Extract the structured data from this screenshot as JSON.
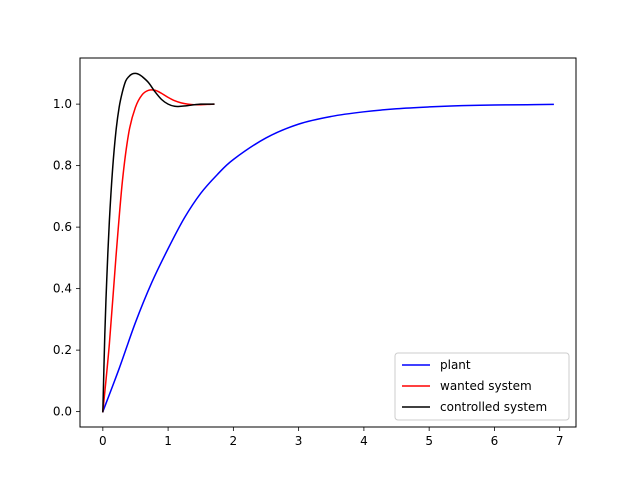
{
  "chart_data": {
    "type": "line",
    "title": "",
    "xlabel": "",
    "ylabel": "",
    "xlim": [
      -0.35,
      7.25
    ],
    "ylim": [
      -0.05,
      1.15
    ],
    "xticks": [
      0,
      1,
      2,
      3,
      4,
      5,
      6,
      7
    ],
    "xtick_labels": [
      "0",
      "1",
      "2",
      "3",
      "4",
      "5",
      "6",
      "7"
    ],
    "yticks": [
      0.0,
      0.2,
      0.4,
      0.6,
      0.8,
      1.0
    ],
    "ytick_labels": [
      "0.0",
      "0.2",
      "0.4",
      "0.6",
      "0.8",
      "1.0"
    ],
    "grid": false,
    "legend_position": "lower-right",
    "series": [
      {
        "name": "plant",
        "color": "#0000ff",
        "x": [
          0,
          0.25,
          0.5,
          0.75,
          1.0,
          1.25,
          1.5,
          1.75,
          2.0,
          2.5,
          3.0,
          3.5,
          4.0,
          4.5,
          5.0,
          5.5,
          6.0,
          6.5,
          6.9
        ],
        "y": [
          0,
          0.14,
          0.29,
          0.42,
          0.53,
          0.63,
          0.71,
          0.77,
          0.82,
          0.89,
          0.935,
          0.96,
          0.975,
          0.985,
          0.991,
          0.995,
          0.997,
          0.998,
          0.999
        ]
      },
      {
        "name": "wanted system",
        "color": "#ff0000",
        "x": [
          0,
          0.1,
          0.2,
          0.3,
          0.4,
          0.5,
          0.6,
          0.7,
          0.8,
          0.9,
          1.0,
          1.1,
          1.2,
          1.3,
          1.4,
          1.5,
          1.6,
          1.7
        ],
        "y": [
          0,
          0.22,
          0.5,
          0.75,
          0.91,
          0.99,
          1.03,
          1.045,
          1.045,
          1.035,
          1.022,
          1.011,
          1.004,
          1.0,
          0.998,
          0.998,
          0.999,
          1.0
        ]
      },
      {
        "name": "controlled system",
        "color": "#000000",
        "x": [
          0,
          0.03,
          0.06,
          0.1,
          0.15,
          0.2,
          0.25,
          0.3,
          0.35,
          0.4,
          0.45,
          0.5,
          0.55,
          0.6,
          0.7,
          0.8,
          0.9,
          1.0,
          1.1,
          1.2,
          1.3,
          1.4,
          1.5,
          1.6,
          1.7
        ],
        "y": [
          0,
          0.25,
          0.43,
          0.62,
          0.79,
          0.91,
          0.99,
          1.04,
          1.075,
          1.09,
          1.098,
          1.1,
          1.097,
          1.09,
          1.07,
          1.04,
          1.015,
          1.0,
          0.993,
          0.993,
          0.995,
          0.998,
          1.0,
          1.0,
          1.0
        ]
      }
    ]
  }
}
